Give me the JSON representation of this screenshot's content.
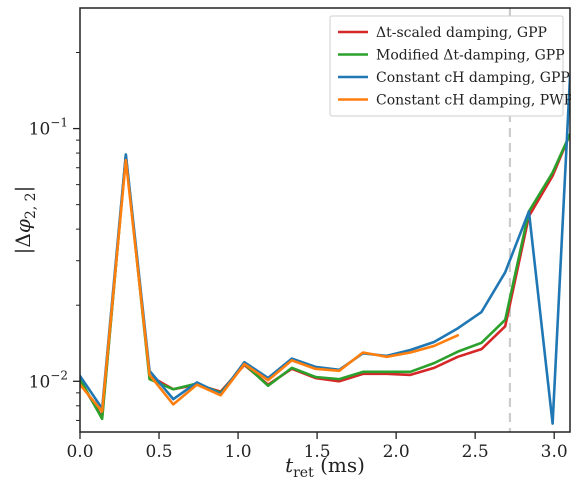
{
  "chart_data": {
    "type": "line",
    "xlabel": "t_ret (ms)",
    "ylabel": "|Δφ2,2|",
    "xlim": [
      0.0,
      3.1
    ],
    "ylim": [
      0.0063,
      0.3
    ],
    "yscale": "log",
    "x_ticks": [
      0.0,
      0.5,
      1.0,
      1.5,
      2.0,
      2.5,
      3.0
    ],
    "x_tick_labels": [
      "0.0",
      "0.5",
      "1.0",
      "1.5",
      "2.0",
      "2.5",
      "3.0"
    ],
    "y_tick_labels": [
      {
        "value": 0.01,
        "base": "10",
        "exp": "−2"
      },
      {
        "value": 0.1,
        "base": "10",
        "exp": "−1"
      }
    ],
    "vline": 2.72,
    "legend_position": "upper right",
    "series": [
      {
        "name": "Δt-scaled damping, GPP",
        "color": "#d62728",
        "x": [
          0.0,
          0.14,
          0.29,
          0.44,
          0.59,
          0.74,
          0.89,
          1.04,
          1.19,
          1.34,
          1.49,
          1.64,
          1.79,
          1.94,
          2.09,
          2.24,
          2.39,
          2.54,
          2.69,
          2.84,
          2.99,
          3.1
        ],
        "y": [
          0.01,
          0.0072,
          0.078,
          0.0105,
          0.0093,
          0.0097,
          0.0091,
          0.0116,
          0.0097,
          0.0112,
          0.0103,
          0.01,
          0.0107,
          0.0107,
          0.0106,
          0.0113,
          0.0125,
          0.0134,
          0.0165,
          0.045,
          0.065,
          0.095
        ]
      },
      {
        "name": "Modified Δt-damping, GPP",
        "color": "#2ca02c",
        "x": [
          0.0,
          0.14,
          0.29,
          0.44,
          0.59,
          0.74,
          0.89,
          1.04,
          1.19,
          1.34,
          1.49,
          1.64,
          1.79,
          1.94,
          2.09,
          2.24,
          2.39,
          2.54,
          2.69,
          2.84,
          2.99,
          3.1
        ],
        "y": [
          0.0102,
          0.0071,
          0.078,
          0.0102,
          0.0093,
          0.0098,
          0.009,
          0.0117,
          0.0096,
          0.0113,
          0.0104,
          0.0102,
          0.0109,
          0.0109,
          0.0109,
          0.0118,
          0.0131,
          0.0142,
          0.0175,
          0.047,
          0.067,
          0.095
        ]
      },
      {
        "name": "Constant cH damping, GPP",
        "color": "#1f77b4",
        "x": [
          0.0,
          0.14,
          0.29,
          0.44,
          0.59,
          0.74,
          0.89,
          1.04,
          1.19,
          1.34,
          1.49,
          1.64,
          1.79,
          1.94,
          2.09,
          2.24,
          2.39,
          2.54,
          2.69,
          2.84,
          2.99,
          3.1
        ],
        "y": [
          0.0105,
          0.0078,
          0.079,
          0.011,
          0.0085,
          0.0099,
          0.0089,
          0.0119,
          0.0103,
          0.0123,
          0.0114,
          0.0111,
          0.0129,
          0.0126,
          0.0133,
          0.0143,
          0.0162,
          0.0188,
          0.027,
          0.047,
          0.0068,
          0.16
        ]
      },
      {
        "name": "Constant cH damping, PWP",
        "color": "#ff7f0e",
        "x": [
          0.0,
          0.14,
          0.29,
          0.44,
          0.59,
          0.74,
          0.89,
          1.04,
          1.19,
          1.34,
          1.49,
          1.64,
          1.79,
          1.94,
          2.09,
          2.24,
          2.39
        ],
        "y": [
          0.0097,
          0.0076,
          0.075,
          0.0106,
          0.0081,
          0.0097,
          0.0088,
          0.0117,
          0.0101,
          0.0121,
          0.0112,
          0.011,
          0.013,
          0.0125,
          0.013,
          0.0138,
          0.0152
        ]
      }
    ]
  }
}
